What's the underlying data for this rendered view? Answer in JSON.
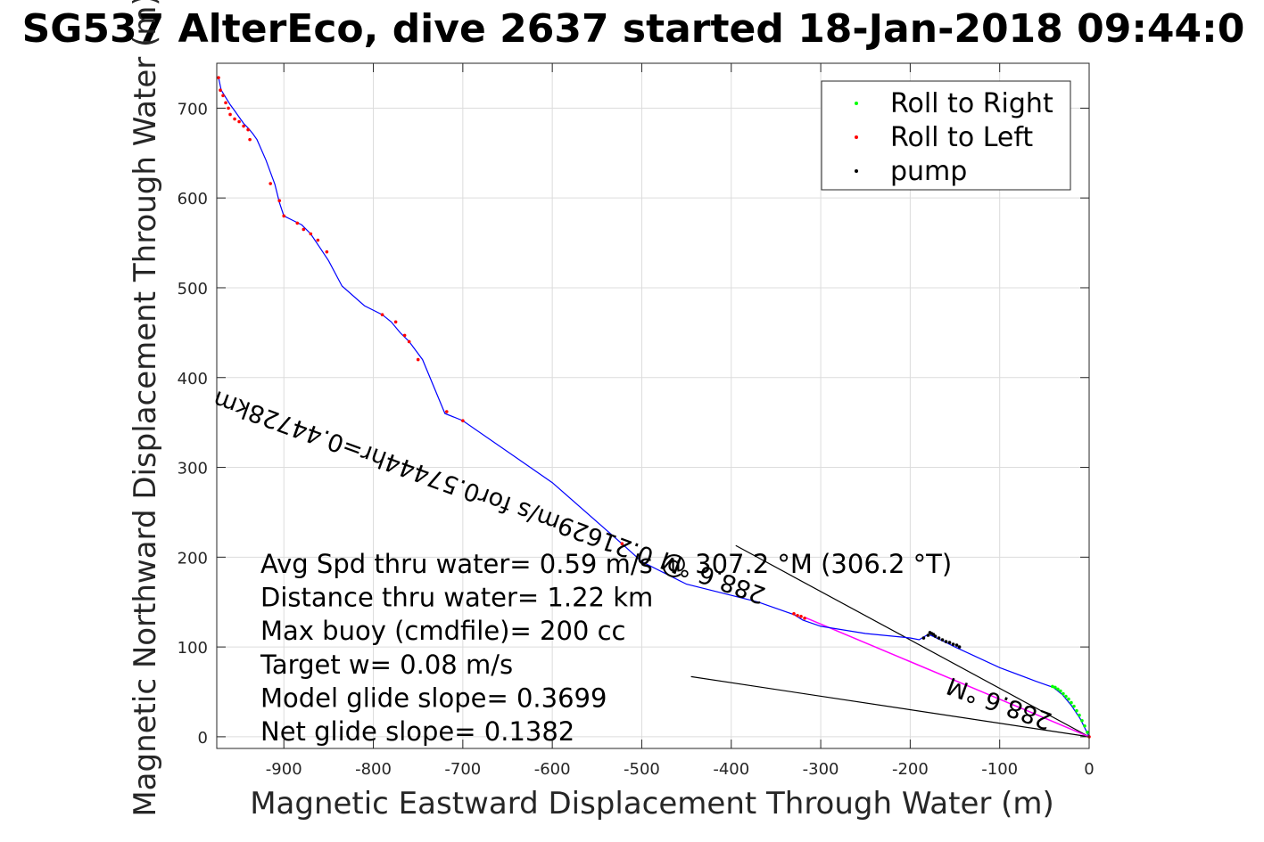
{
  "chart_data": {
    "type": "line",
    "title": "SG537 AlterEco, dive 2637 started 18-Jan-2018 09:44:0",
    "xlabel": "Magnetic Eastward Displacement Through Water (m)",
    "ylabel": "Magnetic Northward Displacement Through Water (m)",
    "xlim": [
      -975,
      0
    ],
    "ylim": [
      -13,
      750
    ],
    "xticks": [
      -900,
      -800,
      -700,
      -600,
      -500,
      -400,
      -300,
      -200,
      -100,
      0
    ],
    "yticks": [
      0,
      100,
      200,
      300,
      400,
      500,
      600,
      700
    ],
    "grid": true,
    "legend_position": "top-right",
    "legend": [
      {
        "label": "Roll to Right",
        "color": "#00ff00"
      },
      {
        "label": "Roll to Left",
        "color": "#ff0000"
      },
      {
        "label": "pump",
        "color": "#000000"
      }
    ],
    "colors": {
      "track": "#0000ff",
      "right": "#00ff00",
      "left": "#ff0000",
      "pump": "#000000",
      "model": "#ff00ff"
    },
    "track": {
      "x": [
        0,
        -10,
        -20,
        -30,
        -40,
        -60,
        -100,
        -150,
        -160,
        -175,
        -180,
        -190,
        -200,
        -250,
        -300,
        -320,
        -330,
        -370,
        -450,
        -500,
        -520,
        -600,
        -700,
        -720,
        -745,
        -760,
        -770,
        -780,
        -790,
        -810,
        -835,
        -850,
        -860,
        -870,
        -880,
        -890,
        -900,
        -905,
        -910,
        -920,
        -930,
        -935,
        -940,
        -945,
        -950,
        -955,
        -960,
        -965,
        -970,
        -973
      ],
      "y": [
        0,
        20,
        35,
        47,
        55,
        62,
        77,
        100,
        105,
        112,
        114,
        108,
        110,
        115,
        123,
        130,
        136,
        150,
        170,
        195,
        213,
        283,
        352,
        360,
        420,
        440,
        450,
        462,
        470,
        480,
        502,
        530,
        545,
        560,
        570,
        575,
        580,
        595,
        615,
        642,
        665,
        672,
        678,
        683,
        690,
        697,
        704,
        712,
        720,
        734
      ]
    },
    "roll_right": {
      "x": [
        -2,
        -5,
        -8,
        -11,
        -14,
        -17,
        -20,
        -23,
        -26,
        -29,
        -32,
        -35,
        -38,
        -41
      ],
      "y": [
        5,
        12,
        18,
        24,
        29,
        34,
        38,
        42,
        45,
        48,
        51,
        53,
        55,
        56
      ]
    },
    "roll_left": {
      "x": [
        -973,
        -971,
        -968,
        -965,
        -962,
        -960,
        -955,
        -950,
        -945,
        -940,
        -938,
        -915,
        -905,
        -900,
        -885,
        -878,
        -870,
        -862,
        -852,
        -790,
        -775,
        -765,
        -760,
        -750,
        -718,
        -700,
        -522,
        -330,
        -326,
        -322,
        -318,
        0
      ],
      "y": [
        734,
        720,
        714,
        706,
        700,
        693,
        688,
        685,
        680,
        676,
        665,
        616,
        597,
        580,
        572,
        565,
        560,
        553,
        540,
        470,
        462,
        447,
        440,
        420,
        362,
        352,
        215,
        137,
        135,
        134,
        132,
        0
      ]
    },
    "pump": {
      "x": [
        -185,
        -180,
        -176,
        -172,
        -168,
        -164,
        -160,
        -156,
        -152,
        -148,
        -145,
        -178,
        -174
      ],
      "y": [
        110,
        113,
        115,
        112,
        110,
        108,
        106,
        105,
        103,
        102,
        100,
        116,
        114
      ]
    },
    "model_line": {
      "x": [
        0,
        -318
      ],
      "y": [
        0,
        133
      ]
    },
    "reference_lines": [
      {
        "x": [
          -395,
          0
        ],
        "y": [
          213,
          0
        ]
      },
      {
        "x": [
          -445,
          0
        ],
        "y": [
          67,
          0
        ]
      }
    ],
    "annotations": [
      "Avg Spd thru water= 0.59 m/s @ 307.2 °M (306.2 °T)",
      "Distance thru water=  1.22 km",
      "Max buoy (cmdfile)= 200 cc",
      "Target w= 0.08 m/s",
      "Model glide slope= 0.3699",
      "Net glide slope= 0.1382"
    ],
    "rotated_annotations": [
      {
        "text": "0.21629m/s for0.57444hr=0.44728km",
        "anchor_x": -485,
        "anchor_y": 208,
        "angle": 200
      },
      {
        "text": "288.6 °M",
        "anchor_x": -360,
        "anchor_y": 165,
        "angle": 200
      },
      {
        "text": "288.6 °M",
        "anchor_x": -40,
        "anchor_y": 25,
        "angle": 200
      }
    ]
  }
}
